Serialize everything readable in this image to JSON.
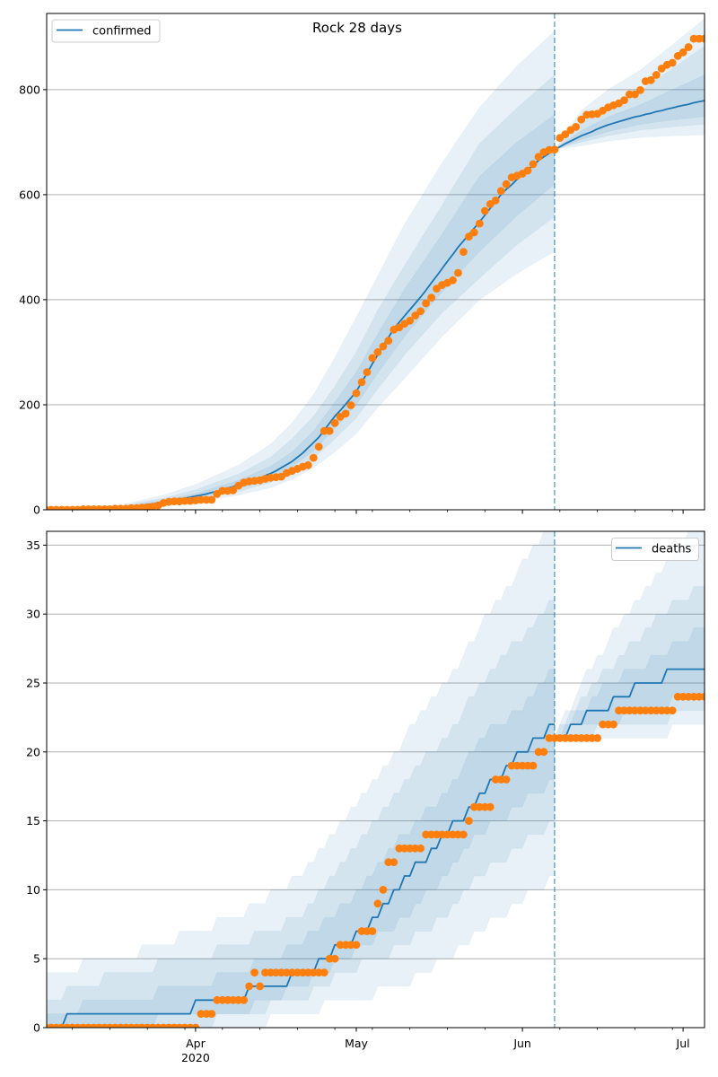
{
  "figure_title": "Rock 28 days",
  "colors": {
    "model": "#1f77b4",
    "observed": "#ff7f0e",
    "grid": "#b0b0b0"
  },
  "x_axis": {
    "start_date": "2020-03-04",
    "xlim_days": [
      0.2,
      123
    ],
    "major_ticks": [
      {
        "day": 28,
        "date": "2020-04-01",
        "label": "Apr",
        "sublabel": "2020"
      },
      {
        "day": 58,
        "date": "2020-05-01",
        "label": "May"
      },
      {
        "day": 89,
        "date": "2020-06-01",
        "label": "Jun"
      },
      {
        "day": 119,
        "date": "2020-07-01",
        "label": "Jul"
      }
    ],
    "minor_tick_days": [
      5,
      12,
      19,
      26,
      33,
      40,
      47,
      54,
      61,
      68,
      75,
      82,
      96,
      103,
      110,
      117
    ]
  },
  "chart_data": [
    {
      "id": "confirmed",
      "type": "line",
      "title": "Rock 28 days",
      "xlabel": "",
      "ylabel": "",
      "ylim": [
        0,
        945
      ],
      "yticks": [
        0,
        200,
        400,
        600,
        800
      ],
      "ytick_labels": [
        "0",
        "200",
        "400",
        "600",
        "800"
      ],
      "grid": "horizontal",
      "show_xtick_labels": false,
      "integer_counts": false,
      "legend": {
        "label": "confirmed",
        "location": "upper-left"
      },
      "forecast_start_day": 95,
      "forecast_start_date": "2020-06-07",
      "observed": [
        0,
        0,
        0,
        0,
        0,
        0,
        0,
        1,
        1,
        1,
        1,
        1,
        1,
        2,
        2,
        2,
        3,
        3,
        4,
        5,
        6,
        8,
        13,
        15,
        16,
        16,
        17,
        17,
        18,
        19,
        19,
        19,
        30,
        36,
        36,
        37,
        46,
        52,
        54,
        55,
        56,
        59,
        61,
        62,
        63,
        70,
        74,
        78,
        82,
        85,
        99,
        120,
        150,
        150,
        165,
        177,
        183,
        199,
        222,
        243,
        262,
        289,
        300,
        311,
        322,
        343,
        347,
        354,
        360,
        370,
        378,
        393,
        404,
        421,
        428,
        432,
        437,
        451,
        491,
        520,
        528,
        545,
        569,
        582,
        589,
        607,
        620,
        633,
        636,
        640,
        646,
        658,
        672,
        681,
        685,
        686,
        708,
        715,
        723,
        729,
        743,
        752,
        753,
        754,
        760,
        766,
        770,
        774,
        780,
        791,
        791,
        799,
        816,
        818,
        828,
        840,
        847,
        851,
        864,
        871,
        881,
        897,
        897,
        897
      ],
      "median_fit": [
        0,
        0,
        0,
        1,
        1,
        1,
        1,
        1,
        2,
        2,
        2,
        2,
        3,
        3,
        4,
        5,
        6,
        7,
        8,
        10,
        11,
        13,
        14,
        16,
        18,
        20,
        22,
        24,
        26,
        28,
        30,
        33,
        35,
        38,
        41,
        44,
        47,
        50,
        53,
        57,
        60,
        65,
        69,
        74,
        80,
        86,
        92,
        100,
        108,
        118,
        128,
        138,
        151,
        165,
        178,
        189,
        201,
        213,
        225,
        243,
        260,
        278,
        295,
        312,
        328,
        345,
        357,
        369,
        381,
        393,
        405,
        418,
        432,
        445,
        459,
        473,
        486,
        500,
        512,
        524,
        536,
        548,
        561,
        574,
        587,
        600,
        610,
        619,
        629,
        638,
        647,
        656,
        665,
        672,
        679,
        686
      ],
      "median_forecast": [
        686,
        691,
        697,
        702,
        707,
        712,
        716,
        720,
        725,
        729,
        733,
        736,
        739,
        742,
        745,
        748,
        750,
        753,
        755,
        758,
        760,
        763,
        765,
        768,
        770,
        772,
        775,
        777,
        779
      ],
      "bands_fit": {
        "days": [
          0,
          14,
          22,
          28,
          36,
          42,
          46,
          50,
          54,
          58,
          62,
          67,
          74,
          81,
          88,
          95
        ],
        "outer": {
          "lower": [
            0,
            2,
            8,
            15,
            28,
            42,
            58,
            80,
            110,
            145,
            195,
            250,
            330,
            400,
            450,
            492
          ],
          "upper": [
            2,
            9,
            28,
            48,
            85,
            125,
            165,
            219,
            290,
            367,
            445,
            544,
            660,
            766,
            845,
            911
          ]
        },
        "second": {
          "lower": [
            0,
            3,
            10,
            19,
            35,
            52,
            72,
            98,
            135,
            175,
            230,
            295,
            375,
            441,
            505,
            558
          ],
          "upper": [
            1,
            7,
            22,
            38,
            68,
            100,
            135,
            178,
            235,
            300,
            380,
            465,
            580,
            697,
            765,
            828
          ]
        },
        "inner": {
          "lower": [
            0,
            3,
            12,
            22,
            40,
            60,
            82,
            112,
            155,
            200,
            260,
            330,
            415,
            492,
            560,
            620
          ],
          "upper": [
            1,
            5,
            18,
            31,
            56,
            83,
            110,
            150,
            205,
            262,
            335,
            420,
            525,
            635,
            700,
            752
          ]
        }
      },
      "bands_forecast": {
        "days": [
          95,
          100,
          105,
          111,
          117,
          123
        ],
        "outer": {
          "lower": [
            686,
            693,
            702,
            709,
            712,
            714
          ],
          "upper": [
            686,
            760,
            800,
            837,
            885,
            935
          ]
        },
        "second": {
          "lower": [
            686,
            700,
            712,
            723,
            729,
            734
          ],
          "upper": [
            686,
            738,
            765,
            797,
            840,
            883
          ]
        },
        "inner": {
          "lower": [
            686,
            705,
            720,
            734,
            742,
            749
          ],
          "upper": [
            686,
            722,
            748,
            771,
            800,
            828
          ]
        }
      }
    },
    {
      "id": "deaths",
      "type": "line",
      "title": "",
      "xlabel": "",
      "ylabel": "",
      "ylim": [
        0,
        36
      ],
      "yticks": [
        0,
        5,
        10,
        15,
        20,
        25,
        30,
        35
      ],
      "ytick_labels": [
        "0",
        "5",
        "10",
        "15",
        "20",
        "25",
        "30",
        "35"
      ],
      "grid": "horizontal",
      "show_xtick_labels": true,
      "integer_counts": true,
      "legend": {
        "label": "deaths",
        "location": "upper-right"
      },
      "forecast_start_day": 95,
      "forecast_start_date": "2020-06-07",
      "observed": [
        0,
        0,
        0,
        0,
        0,
        0,
        0,
        0,
        0,
        0,
        0,
        0,
        0,
        0,
        0,
        0,
        0,
        0,
        0,
        0,
        0,
        0,
        0,
        0,
        0,
        0,
        0,
        0,
        0,
        1,
        1,
        1,
        2,
        2,
        2,
        2,
        2,
        2,
        3,
        4,
        3,
        4,
        4,
        4,
        4,
        4,
        4,
        4,
        4,
        4,
        4,
        4,
        4,
        5,
        5,
        6,
        6,
        6,
        6,
        7,
        7,
        7,
        9,
        10,
        12,
        12,
        13,
        13,
        13,
        13,
        13,
        14,
        14,
        14,
        14,
        14,
        14,
        14,
        14,
        15,
        16,
        16,
        16,
        16,
        18,
        18,
        18,
        19,
        19,
        19,
        19,
        19,
        20,
        20,
        21,
        21,
        21,
        21,
        21,
        21,
        21,
        21,
        21,
        21,
        22,
        22,
        22,
        23,
        23,
        23,
        23,
        23,
        23,
        23,
        23,
        23,
        23,
        23,
        24,
        24,
        24,
        24,
        24,
        24
      ],
      "median_fit": [
        0,
        0,
        0,
        0,
        1,
        1,
        1,
        1,
        1,
        1,
        1,
        1,
        1,
        1,
        1,
        1,
        1,
        1,
        1,
        1,
        1,
        1,
        1,
        1,
        1,
        1,
        1,
        1,
        2,
        2,
        2,
        2,
        2,
        2,
        2,
        2,
        2,
        2,
        3,
        3,
        3,
        3,
        3,
        3,
        3,
        3,
        4,
        4,
        4,
        4,
        4,
        5,
        5,
        5,
        6,
        6,
        6,
        6,
        7,
        7,
        7,
        8,
        8,
        9,
        9,
        10,
        10,
        11,
        11,
        12,
        12,
        12,
        13,
        13,
        14,
        14,
        15,
        15,
        15,
        16,
        16,
        17,
        17,
        18,
        18,
        18,
        19,
        19,
        20,
        20,
        20,
        21,
        21,
        21,
        22,
        22
      ],
      "median_forecast": [
        21,
        21,
        21,
        22,
        22,
        22,
        23,
        23,
        23,
        23,
        23,
        24,
        24,
        24,
        24,
        25,
        25,
        25,
        25,
        25,
        25,
        26,
        26,
        26,
        26,
        26,
        26,
        26,
        26
      ],
      "bands_fit": {
        "days": [
          0,
          14,
          28,
          36,
          47,
          56,
          67,
          75,
          81,
          88,
          95
        ],
        "outer": {
          "lower": [
            0,
            0,
            0,
            0,
            1,
            2,
            3,
            5,
            7,
            9,
            11
          ],
          "upper": [
            4,
            5,
            7,
            8,
            11,
            15,
            21,
            25,
            29,
            33,
            37
          ]
        },
        "second": {
          "lower": [
            0,
            0,
            0,
            1,
            2,
            4,
            6,
            8,
            11,
            13,
            15
          ],
          "upper": [
            2,
            4,
            5,
            6,
            8,
            12,
            18,
            21,
            25,
            28,
            31
          ]
        },
        "inner": {
          "lower": [
            0,
            0,
            1,
            1,
            3,
            5,
            8,
            11,
            14,
            16,
            18
          ],
          "upper": [
            1,
            2,
            3,
            4,
            6,
            9,
            14,
            17,
            21,
            23,
            26
          ]
        }
      },
      "bands_forecast": {
        "days": [
          95,
          100,
          105,
          110,
          115,
          119,
          123
        ],
        "outer": {
          "lower": [
            21,
            21,
            21,
            21,
            21,
            22,
            22
          ],
          "upper": [
            21,
            25,
            28,
            31,
            33,
            35,
            37
          ]
        },
        "second": {
          "lower": [
            21,
            21,
            22,
            22,
            22,
            23,
            23
          ],
          "upper": [
            21,
            24,
            26,
            28,
            30,
            31,
            32
          ]
        },
        "inner": {
          "lower": [
            21,
            22,
            22,
            23,
            23,
            24,
            24
          ],
          "upper": [
            21,
            23,
            25,
            26,
            27,
            28,
            29
          ]
        }
      }
    }
  ]
}
